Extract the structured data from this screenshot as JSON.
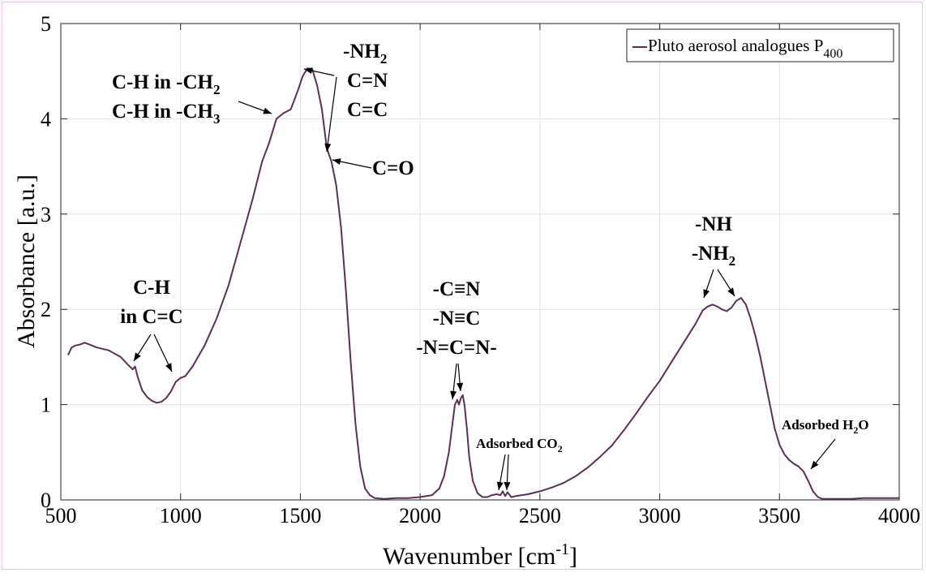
{
  "chart_data": {
    "type": "line",
    "title": "",
    "xlabel": "Wavenumber [cm",
    "xlabel_sup": "-1",
    "xlabel_end": "]",
    "ylabel": "Absorbance [a.u.]",
    "xlim": [
      500,
      4000
    ],
    "ylim": [
      0,
      5
    ],
    "xticks": [
      500,
      1000,
      1500,
      2000,
      2500,
      3000,
      3500,
      4000
    ],
    "yticks": [
      0,
      1,
      2,
      3,
      4,
      5
    ],
    "grid": true,
    "legend_position": "top-right",
    "series": [
      {
        "name": "Pluto aerosol analogues P",
        "name_sub": "400",
        "color": "#5b3055",
        "x": [
          530,
          545,
          560,
          580,
          600,
          620,
          650,
          700,
          750,
          780,
          800,
          810,
          820,
          840,
          860,
          880,
          900,
          920,
          940,
          960,
          980,
          1000,
          1020,
          1050,
          1100,
          1150,
          1200,
          1250,
          1300,
          1340,
          1370,
          1400,
          1430,
          1460,
          1490,
          1510,
          1530,
          1550,
          1570,
          1590,
          1610,
          1620,
          1630,
          1650,
          1670,
          1690,
          1710,
          1730,
          1750,
          1770,
          1790,
          1810,
          1850,
          1900,
          1950,
          2000,
          2050,
          2080,
          2100,
          2120,
          2135,
          2145,
          2155,
          2162,
          2170,
          2178,
          2185,
          2195,
          2205,
          2220,
          2240,
          2260,
          2280,
          2300,
          2320,
          2335,
          2345,
          2355,
          2365,
          2380,
          2400,
          2450,
          2500,
          2550,
          2600,
          2650,
          2700,
          2750,
          2800,
          2850,
          2900,
          2950,
          3000,
          3050,
          3100,
          3150,
          3180,
          3200,
          3220,
          3240,
          3260,
          3280,
          3300,
          3320,
          3340,
          3360,
          3380,
          3400,
          3420,
          3440,
          3460,
          3480,
          3500,
          3520,
          3540,
          3560,
          3580,
          3600,
          3620,
          3640,
          3660,
          3680,
          3700,
          3750,
          3800,
          3850,
          3900,
          3950,
          4000
        ],
        "y": [
          1.52,
          1.6,
          1.62,
          1.63,
          1.65,
          1.63,
          1.6,
          1.57,
          1.5,
          1.42,
          1.37,
          1.4,
          1.3,
          1.15,
          1.08,
          1.04,
          1.02,
          1.03,
          1.07,
          1.14,
          1.24,
          1.28,
          1.3,
          1.4,
          1.62,
          1.9,
          2.25,
          2.7,
          3.15,
          3.55,
          3.75,
          4.0,
          4.06,
          4.1,
          4.3,
          4.45,
          4.53,
          4.52,
          4.35,
          4.1,
          3.7,
          3.62,
          3.55,
          3.3,
          2.85,
          2.2,
          1.45,
          0.8,
          0.35,
          0.12,
          0.05,
          0.02,
          0.01,
          0.02,
          0.02,
          0.03,
          0.05,
          0.12,
          0.25,
          0.5,
          0.8,
          1.0,
          1.05,
          1.0,
          1.07,
          1.1,
          1.0,
          0.75,
          0.45,
          0.2,
          0.07,
          0.03,
          0.03,
          0.05,
          0.06,
          0.05,
          0.09,
          0.04,
          0.08,
          0.03,
          0.04,
          0.06,
          0.09,
          0.13,
          0.18,
          0.25,
          0.34,
          0.45,
          0.57,
          0.73,
          0.9,
          1.08,
          1.25,
          1.45,
          1.65,
          1.85,
          1.99,
          2.03,
          2.05,
          2.03,
          2.0,
          1.98,
          2.02,
          2.09,
          2.12,
          2.05,
          1.9,
          1.72,
          1.5,
          1.25,
          1.0,
          0.75,
          0.58,
          0.48,
          0.42,
          0.38,
          0.35,
          0.3,
          0.2,
          0.09,
          0.03,
          0.01,
          0.01,
          0.01,
          0.01,
          0.02,
          0.02,
          0.02,
          0.02
        ]
      }
    ],
    "annotations": [
      {
        "id": "ch-cc",
        "lines": [
          "C-H",
          "in C=C"
        ]
      },
      {
        "id": "ch-ch2-ch3",
        "lines": [
          "C-H in -CH",
          "C-H in -CH"
        ],
        "subs": [
          "2",
          "3"
        ]
      },
      {
        "id": "nh2-cn-cc",
        "lines": [
          "-NH",
          "C=N",
          "C=C"
        ],
        "subs": [
          "2",
          "",
          ""
        ]
      },
      {
        "id": "co",
        "lines": [
          "C=O"
        ]
      },
      {
        "id": "nitrile",
        "lines": [
          "-C≡N",
          "-N≡C",
          "-N=C=N-"
        ]
      },
      {
        "id": "co2",
        "lines": [
          "Adsorbed CO"
        ],
        "subs": [
          "2"
        ]
      },
      {
        "id": "nh-nh2",
        "lines": [
          "-NH",
          "-NH"
        ],
        "subs": [
          "",
          "2"
        ]
      },
      {
        "id": "h2o",
        "prefix": "Adsorbed H",
        "sub": "2",
        "suffix": "O"
      }
    ]
  }
}
